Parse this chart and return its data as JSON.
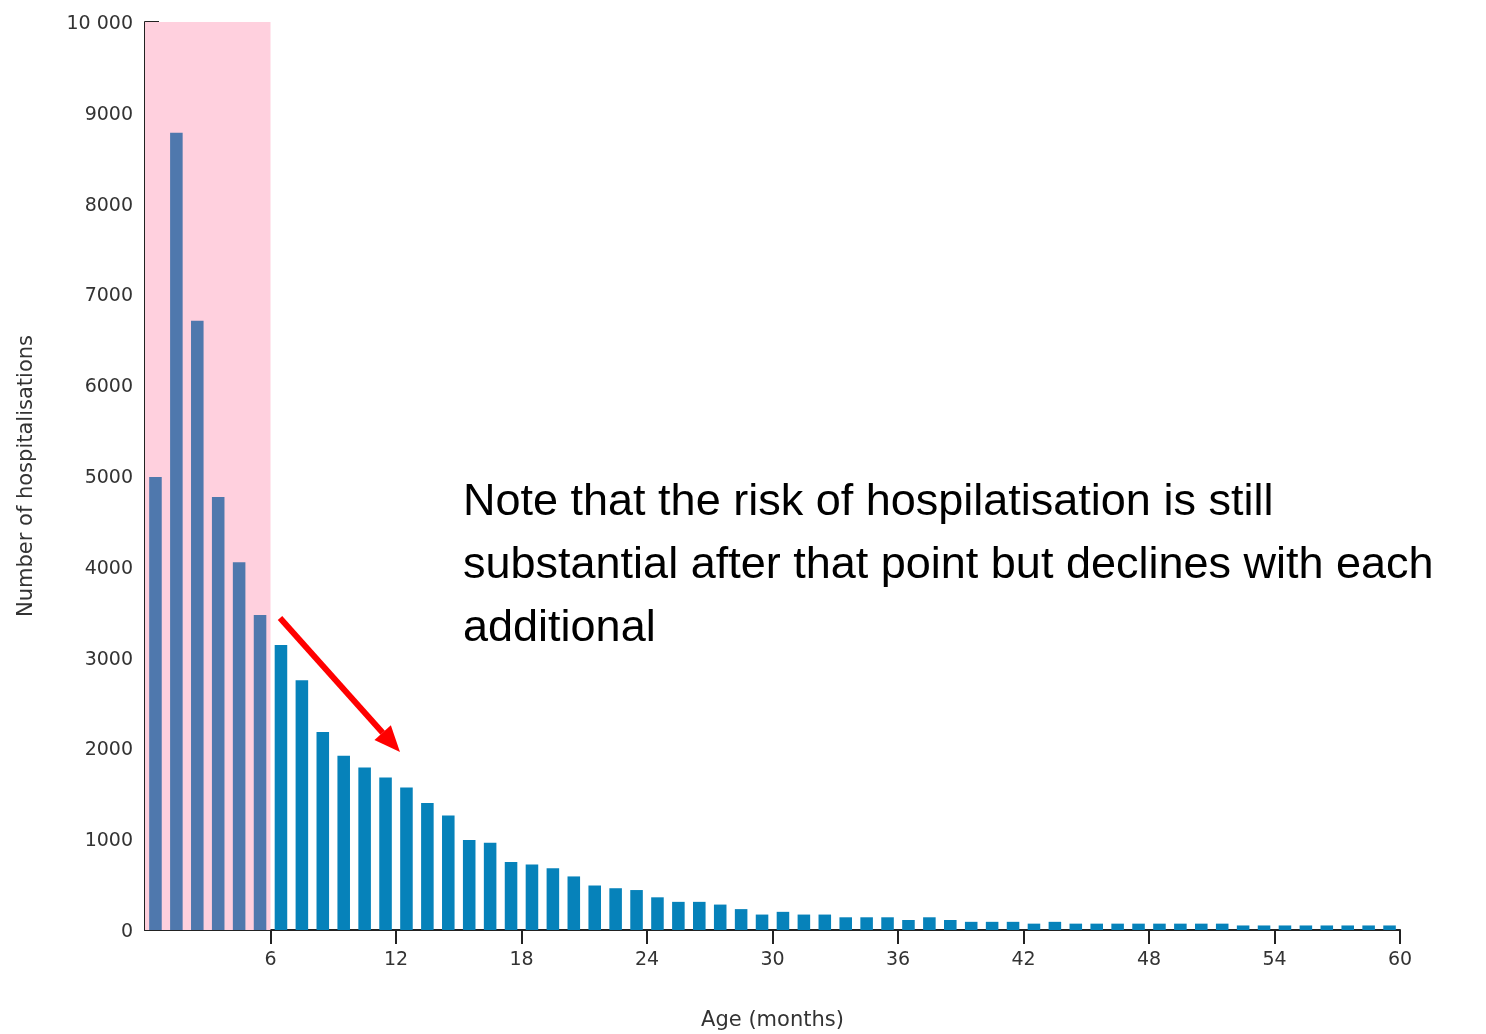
{
  "chart_data": {
    "type": "histogram",
    "xlabel": "Age (months)",
    "ylabel": "Number of hospitalisations",
    "bins": [
      0,
      1,
      2,
      3,
      4,
      5,
      6,
      7,
      8,
      9,
      10,
      11,
      12,
      13,
      14,
      15,
      16,
      17,
      18,
      19,
      20,
      21,
      22,
      23,
      24,
      25,
      26,
      27,
      28,
      29,
      30,
      31,
      32,
      33,
      34,
      35,
      36,
      37,
      38,
      39,
      40,
      41,
      42,
      43,
      44,
      45,
      46,
      47,
      48,
      49,
      50,
      51,
      52,
      53,
      54,
      55,
      56,
      57,
      58,
      59,
      60
    ],
    "values": [
      4990,
      8780,
      6710,
      4770,
      4050,
      3470,
      3140,
      2750,
      2180,
      1920,
      1790,
      1680,
      1570,
      1400,
      1260,
      990,
      960,
      750,
      720,
      680,
      590,
      490,
      460,
      440,
      360,
      310,
      310,
      280,
      230,
      170,
      200,
      170,
      170,
      140,
      140,
      140,
      110,
      140,
      110,
      90,
      90,
      90,
      70,
      90,
      70,
      70,
      70,
      70,
      70,
      70,
      70,
      70,
      50,
      50,
      50,
      50,
      50,
      50,
      50,
      50
    ],
    "colors": [
      "#4f78ad",
      "#4f78ad",
      "#4f78ad",
      "#4f78ad",
      "#4f78ad",
      "#4f78ad",
      "#0682ba",
      "#0682ba",
      "#0682ba",
      "#0682ba",
      "#0682ba",
      "#0682ba",
      "#0682ba",
      "#0682ba",
      "#0682ba",
      "#0682ba",
      "#0682ba",
      "#0682ba",
      "#0682ba",
      "#0682ba",
      "#0682ba",
      "#0682ba",
      "#0682ba",
      "#0682ba",
      "#0682ba",
      "#0682ba",
      "#0682ba",
      "#0682ba",
      "#0682ba",
      "#0682ba",
      "#0682ba",
      "#0682ba",
      "#0682ba",
      "#0682ba",
      "#0682ba",
      "#0682ba",
      "#0682ba",
      "#0682ba",
      "#0682ba",
      "#0682ba",
      "#0682ba",
      "#0682ba",
      "#0682ba",
      "#0682ba",
      "#0682ba",
      "#0682ba",
      "#0682ba",
      "#0682ba",
      "#0682ba",
      "#0682ba",
      "#0682ba",
      "#0682ba",
      "#0682ba",
      "#0682ba",
      "#0682ba",
      "#0682ba",
      "#0682ba",
      "#0682ba",
      "#0682ba",
      "#0682ba"
    ],
    "xlim": [
      0,
      60
    ],
    "xticks": [
      6,
      12,
      18,
      24,
      30,
      36,
      42,
      48,
      54,
      60
    ],
    "ylim": [
      0,
      10000
    ],
    "yticks": [
      0,
      1000,
      2000,
      3000,
      4000,
      5000,
      6000,
      7000,
      8000,
      9000,
      {
        "value": 10000,
        "label": "10 000"
      }
    ],
    "bands": [
      {
        "axis": "x",
        "from": 0,
        "to": 6,
        "color": "#ffd0de"
      }
    ],
    "annotations": [
      "Note that the risk of hospilatisation is still substantial after that point but declines with each additional"
    ],
    "grid": false
  }
}
